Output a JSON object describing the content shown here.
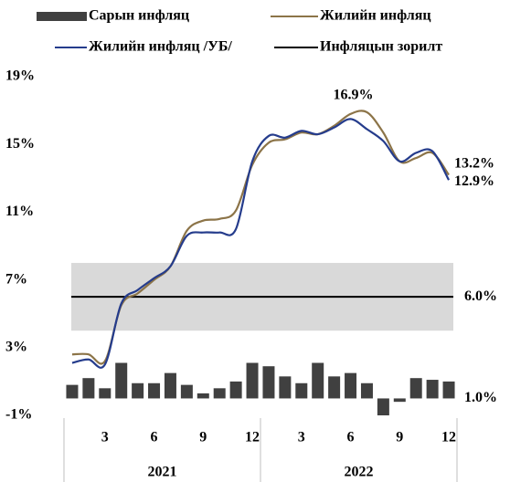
{
  "chart_data": {
    "type": "bar",
    "categories": [
      null,
      null,
      "3",
      null,
      null,
      "6",
      null,
      null,
      "9",
      null,
      null,
      "12",
      null,
      null,
      "3",
      null,
      null,
      "6",
      null,
      null,
      "9",
      null,
      null,
      "12"
    ],
    "groups": [
      "2021",
      "2022"
    ],
    "ylim": [
      -1,
      19
    ],
    "yticks": [
      {
        "value": -1,
        "label": "-1%"
      },
      {
        "value": 3,
        "label": "3%"
      },
      {
        "value": 7,
        "label": "7%"
      },
      {
        "value": 11,
        "label": "11%"
      },
      {
        "value": 15,
        "label": "15%"
      },
      {
        "value": 19,
        "label": "19%"
      }
    ],
    "target_band": [
      4,
      8
    ],
    "band_color": "#d9d9d9",
    "series": [
      {
        "name": "Сарын инфляц",
        "type": "bar",
        "color": "#404040",
        "values": [
          0.8,
          1.2,
          0.6,
          2.1,
          0.9,
          0.9,
          1.5,
          0.8,
          0.3,
          0.6,
          1.0,
          2.1,
          1.9,
          1.3,
          0.9,
          2.1,
          1.3,
          1.5,
          0.9,
          -1.0,
          -0.2,
          1.2,
          1.1,
          1.0
        ],
        "value_labels": [
          null,
          null,
          null,
          null,
          null,
          null,
          null,
          null,
          null,
          null,
          null,
          null,
          null,
          null,
          null,
          null,
          null,
          null,
          null,
          null,
          null,
          null,
          null,
          "1.0%"
        ]
      },
      {
        "name": "Жилийн инфляц",
        "type": "line",
        "color": "#8c7448",
        "values": [
          2.6,
          2.6,
          2.2,
          5.5,
          6.2,
          7.0,
          7.8,
          9.9,
          10.5,
          10.6,
          11.1,
          13.8,
          15.1,
          15.3,
          15.7,
          15.6,
          16.1,
          16.8,
          16.9,
          15.7,
          14.0,
          14.2,
          14.5,
          13.2
        ],
        "value_labels": [
          null,
          null,
          null,
          null,
          null,
          null,
          null,
          null,
          null,
          null,
          null,
          null,
          null,
          null,
          null,
          null,
          null,
          null,
          "16.9%",
          null,
          null,
          null,
          null,
          "13.2%"
        ]
      },
      {
        "name": "Жилийн инфляц /УБ/",
        "type": "line",
        "color": "#253c8c",
        "values": [
          2.1,
          2.3,
          2.0,
          5.6,
          6.4,
          7.1,
          7.8,
          9.6,
          9.8,
          9.8,
          10.0,
          14.0,
          15.5,
          15.4,
          15.8,
          15.6,
          16.0,
          16.5,
          15.9,
          15.2,
          14.0,
          14.5,
          14.6,
          12.9
        ],
        "value_labels": [
          null,
          null,
          null,
          null,
          null,
          null,
          null,
          null,
          null,
          null,
          null,
          null,
          null,
          null,
          null,
          null,
          null,
          null,
          null,
          null,
          null,
          null,
          null,
          "12.9%"
        ]
      },
      {
        "name": "Инфляцын зорилт",
        "type": "hline",
        "color": "#000000",
        "value": 6.0,
        "value_label": "6.0%"
      }
    ]
  }
}
